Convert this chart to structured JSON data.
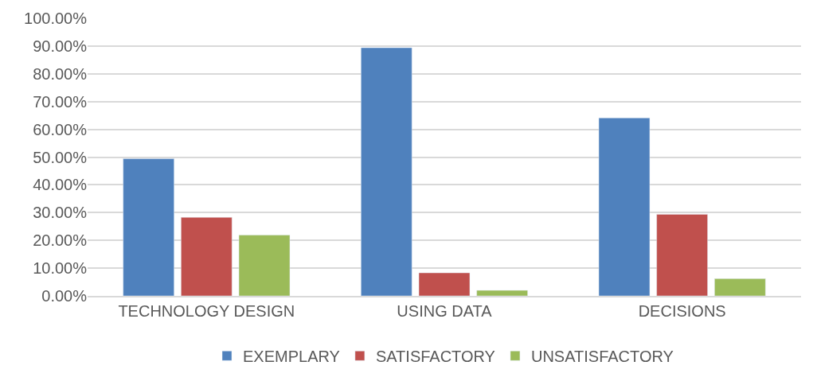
{
  "chart_data": {
    "type": "bar",
    "categories": [
      "TECHNOLOGY DESIGN",
      "USING DATA",
      "DECISIONS"
    ],
    "series": [
      {
        "name": "EXEMPLARY",
        "color": "#4f81bd",
        "values": [
          49.4,
          89.4,
          64.1
        ]
      },
      {
        "name": "SATISFACTORY",
        "color": "#c0504d",
        "values": [
          28.3,
          8.3,
          29.4
        ]
      },
      {
        "name": "UNSATISFACTORY",
        "color": "#9bbb59",
        "values": [
          21.9,
          2.0,
          6.2
        ]
      }
    ],
    "ylim": [
      0,
      100
    ],
    "yticks": [
      {
        "value": 0,
        "label": "0.00%"
      },
      {
        "value": 10,
        "label": "10.00%"
      },
      {
        "value": 20,
        "label": "20.00%"
      },
      {
        "value": 30,
        "label": "30.00%"
      },
      {
        "value": 40,
        "label": "40.00%"
      },
      {
        "value": 50,
        "label": "50.00%"
      },
      {
        "value": 60,
        "label": "60.00%"
      },
      {
        "value": 70,
        "label": "70.00%"
      },
      {
        "value": 80,
        "label": "80.00%"
      },
      {
        "value": 90,
        "label": "90.00%"
      },
      {
        "value": 100,
        "label": "100.00%"
      }
    ],
    "grid": "y",
    "legend": "bottom"
  }
}
